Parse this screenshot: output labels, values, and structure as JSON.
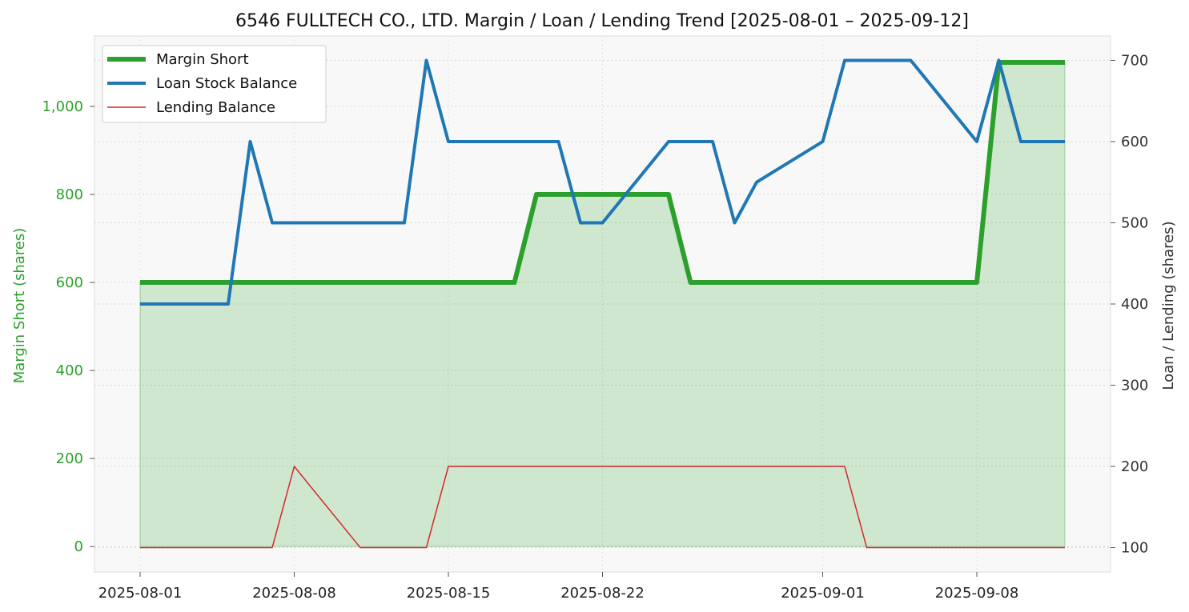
{
  "chart_data": {
    "type": "line",
    "title": "6546 FULLTECH CO., LTD. Margin / Loan / Lending Trend [2025-08-01 – 2025-09-12]",
    "xlabel": "",
    "ylabel_left": "Margin Short (shares)",
    "ylabel_right": "Loan / Lending (shares)",
    "x_tick_labels": [
      "2025-08-01",
      "2025-08-08",
      "2025-08-15",
      "2025-08-22",
      "2025-09-01",
      "2025-09-08"
    ],
    "x": [
      "2025-08-01",
      "2025-08-04",
      "2025-08-05",
      "2025-08-06",
      "2025-08-07",
      "2025-08-08",
      "2025-08-11",
      "2025-08-12",
      "2025-08-13",
      "2025-08-14",
      "2025-08-15",
      "2025-08-18",
      "2025-08-19",
      "2025-08-20",
      "2025-08-21",
      "2025-08-22",
      "2025-08-25",
      "2025-08-26",
      "2025-08-27",
      "2025-08-28",
      "2025-08-29",
      "2025-09-01",
      "2025-09-02",
      "2025-09-03",
      "2025-09-04",
      "2025-09-05",
      "2025-09-08",
      "2025-09-09",
      "2025-09-10",
      "2025-09-11",
      "2025-09-12"
    ],
    "left_ylim": [
      -58,
      1160
    ],
    "left_ticks": [
      0,
      200,
      400,
      600,
      800,
      1000
    ],
    "left_tick_labels": [
      "0",
      "200",
      "400",
      "600",
      "800",
      "1,000"
    ],
    "right_ylim": [
      70,
      730
    ],
    "right_ticks": [
      100,
      200,
      300,
      400,
      500,
      600,
      700
    ],
    "right_tick_labels": [
      "100",
      "200",
      "300",
      "400",
      "500",
      "600",
      "700"
    ],
    "grid": true,
    "legend_position": "top-left",
    "series": [
      {
        "name": "Margin Short",
        "axis": "left",
        "color": "#2ca02c",
        "fill": true,
        "values": [
          600,
          600,
          600,
          600,
          600,
          600,
          600,
          600,
          600,
          600,
          600,
          600,
          800,
          800,
          800,
          800,
          800,
          600,
          600,
          600,
          600,
          600,
          600,
          600,
          600,
          600,
          600,
          1100,
          1100,
          1100,
          1100
        ]
      },
      {
        "name": "Loan Stock Balance",
        "axis": "right",
        "color": "#1f77b4",
        "values": [
          400,
          400,
          400,
          600,
          500,
          500,
          500,
          500,
          500,
          700,
          600,
          600,
          600,
          600,
          500,
          500,
          600,
          600,
          600,
          500,
          550,
          600,
          700,
          700,
          700,
          700,
          600,
          700,
          600,
          600,
          600
        ]
      },
      {
        "name": "Lending Balance",
        "axis": "right",
        "color": "#d62728",
        "values": [
          100,
          100,
          100,
          100,
          100,
          200,
          100,
          100,
          100,
          100,
          200,
          200,
          200,
          200,
          200,
          200,
          200,
          200,
          200,
          200,
          200,
          200,
          200,
          100,
          100,
          100,
          100,
          100,
          100,
          100,
          100
        ]
      }
    ]
  }
}
